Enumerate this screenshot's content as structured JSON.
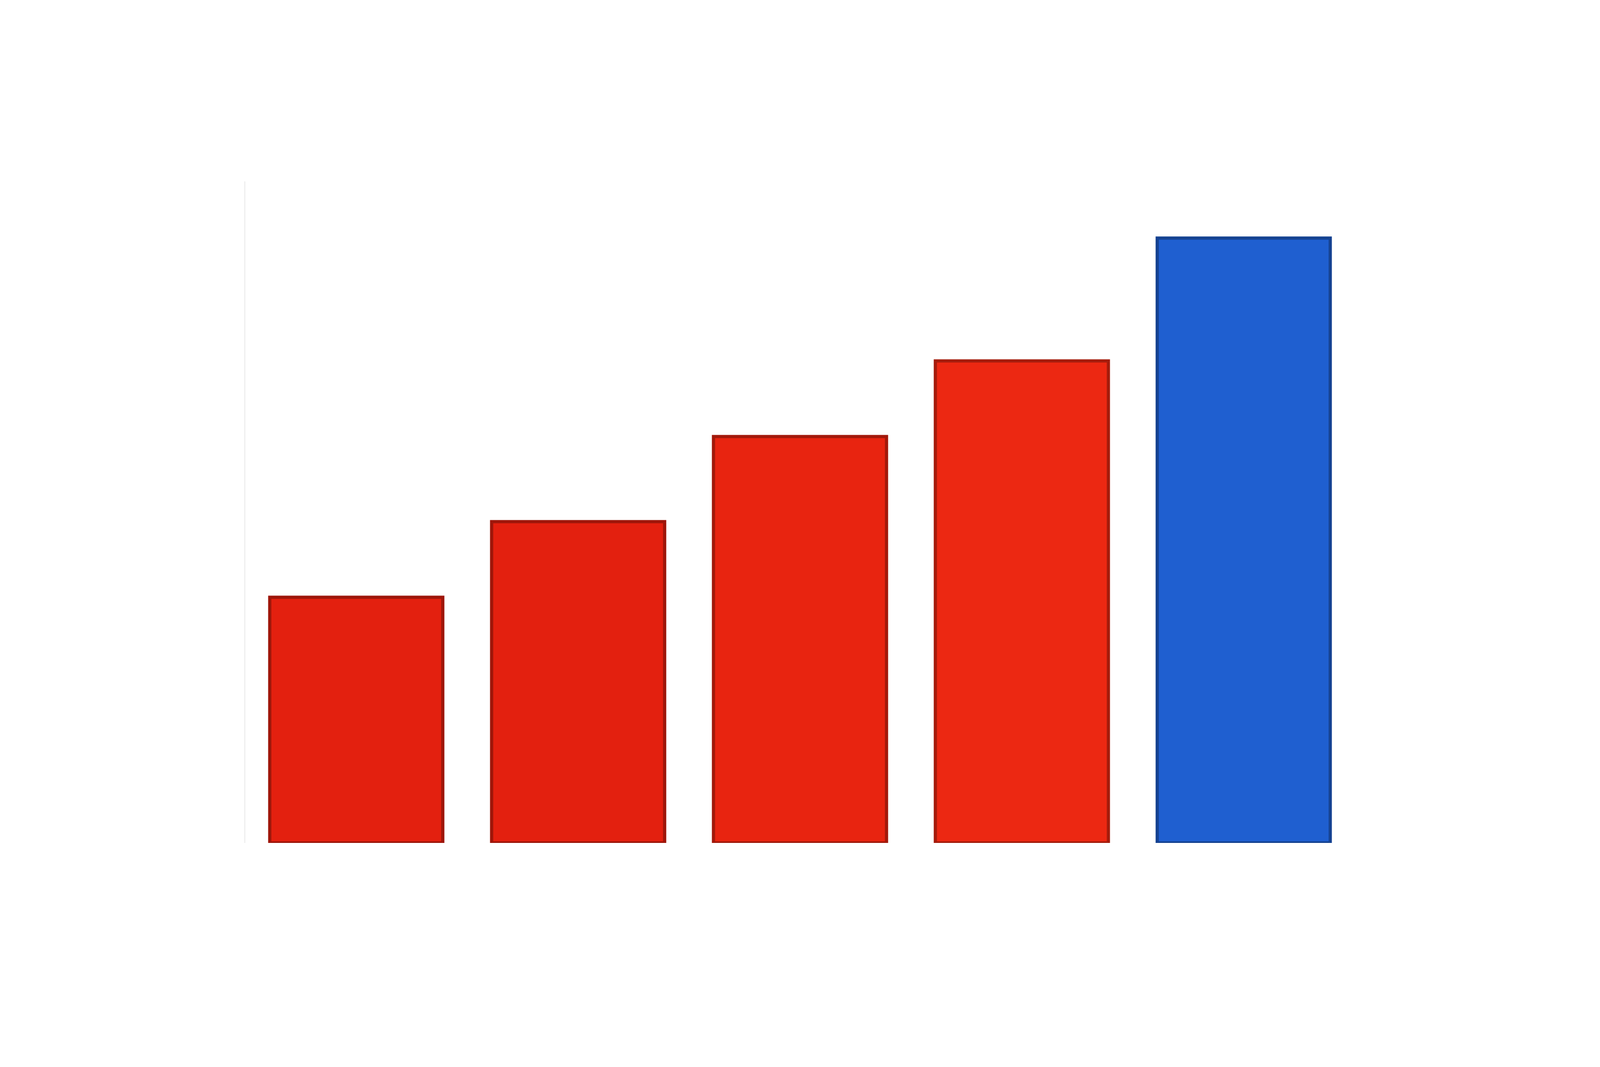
{
  "chart_data": {
    "type": "bar",
    "categories": [
      null,
      null,
      null,
      null,
      null
    ],
    "values": [
      26,
      34,
      43,
      51,
      64
    ],
    "colors": [
      "#e3200f",
      "#e3200f",
      "#e82410",
      "#ec2812",
      "#1f5fd0"
    ],
    "ylim": [
      0,
      70
    ],
    "grid": false,
    "tick_labels": false
  }
}
